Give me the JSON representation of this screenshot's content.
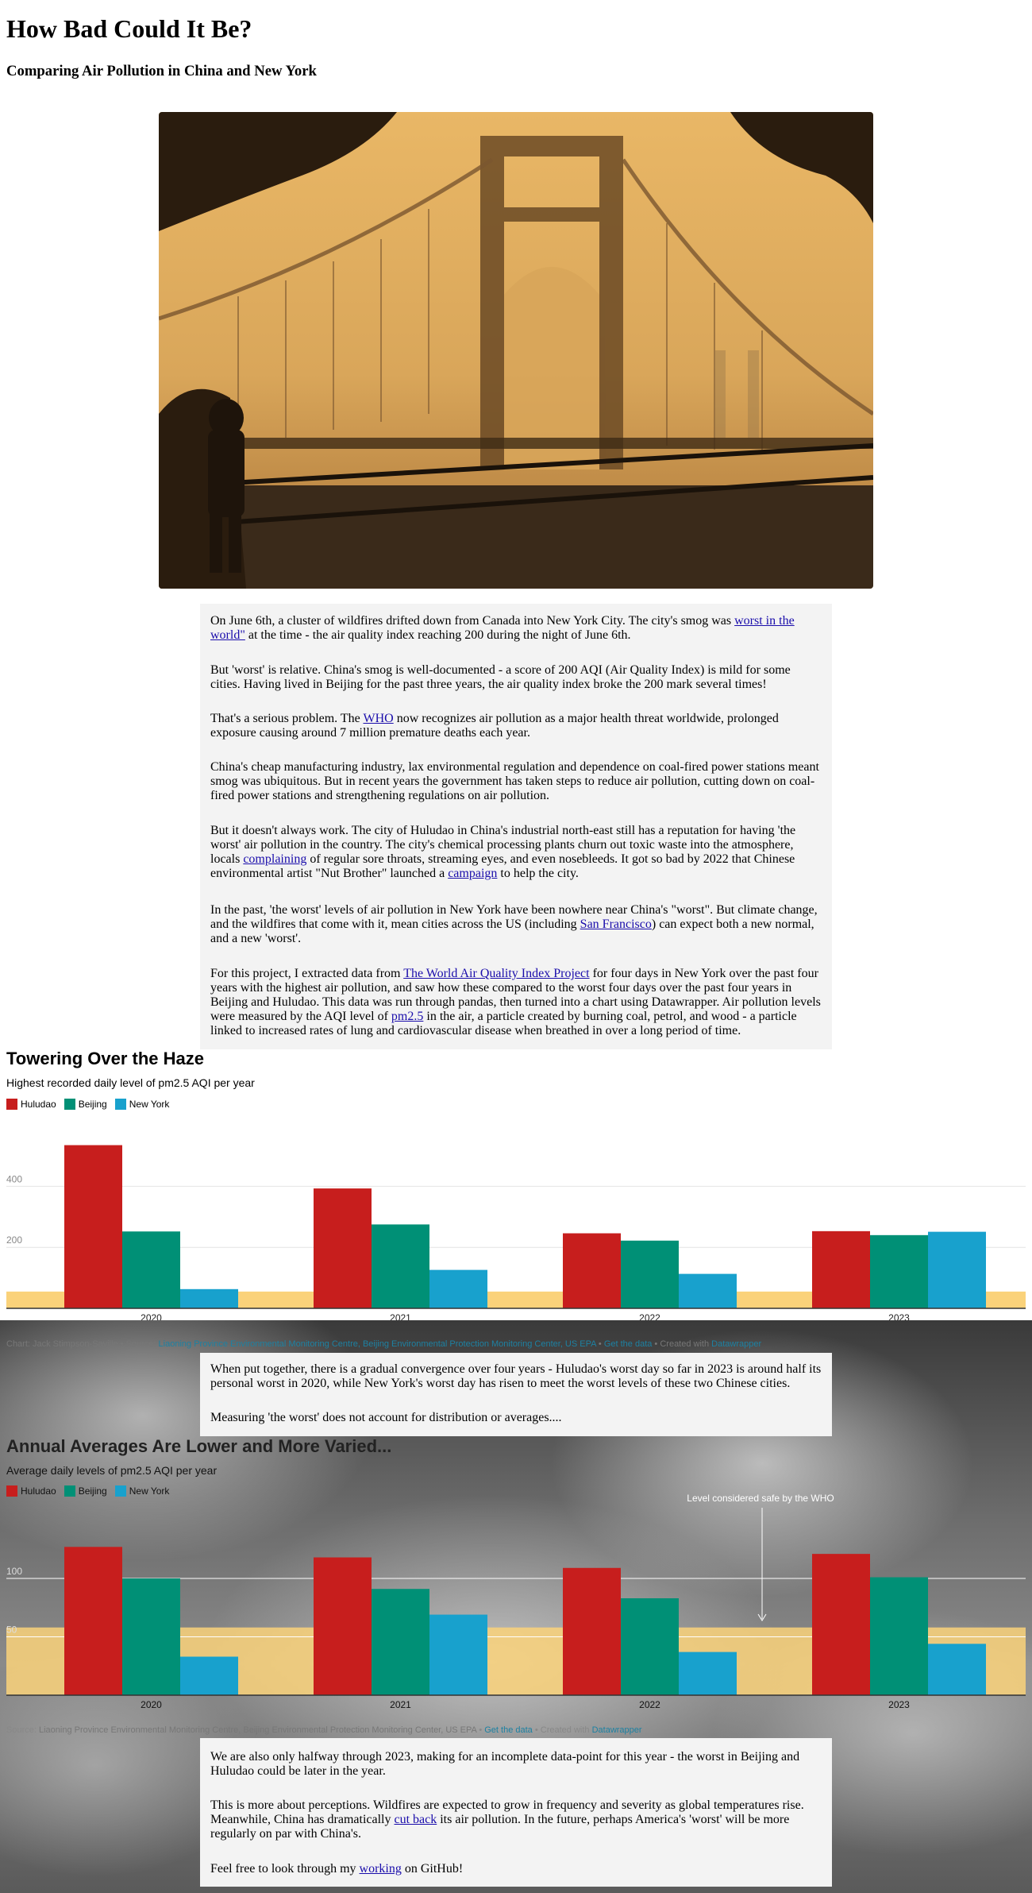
{
  "page": {
    "title": "How Bad Could It Be?",
    "subtitle": "Comparing Air Pollution in China and New York"
  },
  "article": {
    "p1": {
      "before": "On June 6th, a cluster of wildfires drifted down from Canada into New York City. The city's smog was ",
      "link": "worst in the world\"",
      "after": " at the time - the air quality index reaching 200 during the night of June 6th."
    },
    "p2": "But 'worst' is relative. China's smog is well-documented - a score of 200 AQI (Air Quality Index) is mild for some cities. Having lived in Beijing for the past three years, the air quality index broke the 200 mark several times!",
    "p3": {
      "before": "That's a serious problem. The ",
      "link": "WHO",
      "after": " now recognizes air pollution as a major health threat worldwide, prolonged exposure causing around 7 million premature deaths each year."
    },
    "p4": "China's cheap manufacturing industry, lax environmental regulation and dependence on coal-fired power stations meant smog was ubiquitous. But in recent years the government has taken steps to reduce air pollution, cutting down on coal-fired power stations and strengthening regulations on air pollution.",
    "p5": {
      "before": "But it doesn't always work. The city of Huludao in China's industrial north-east still has a reputation for having 'the worst' air pollution in the country. The city's chemical processing plants churn out toxic waste into the atmosphere, locals ",
      "link1": "complaining",
      "middle": " of regular sore throats, streaming eyes, and even nosebleeds. It got so bad by 2022 that Chinese environmental artist \"Nut Brother\" launched a ",
      "link2": "campaign",
      "after": " to help the city."
    },
    "p6": {
      "before": "In the past, 'the worst' levels of air pollution in New York have been nowhere near China's \"worst\". But climate change, and the wildfires that come with it, mean cities across the US (including ",
      "link": "San Francisco",
      "after": ") can expect both a new normal, and a new 'worst'."
    },
    "p7": {
      "before": "For this project, I extracted data from ",
      "link1": "The World Air Quality Index Project",
      "middle": " for four days in New York over the past four years with the highest air pollution, and saw how these compared to the worst four days over the past four years in Beijing and Huludao. This data was run through pandas, then turned into a chart using Datawrapper. Air pollution levels were measured by the AQI level of ",
      "link2": "pm2.5",
      "after": " in the air, a particle created by burning coal, petrol, and wood - a particle linked to increased rates of lung and cardiovascular disease when breathed in over a long period of time."
    },
    "p8": "When put together, there is a gradual convergence over four years - Huludao's worst day so far in 2023 is around half its personal worst in 2020, while New York's worst day has risen to meet the worst levels of these two Chinese cities.",
    "p9": "Measuring 'the worst' does not account for distribution or averages....",
    "p10": "We are also only halfway through 2023, making for an incomplete data-point for this year - the worst in Beijing and Huludao could be later in the year.",
    "p11": {
      "before": "This is more about perceptions. Wildfires are expected to grow in frequency and severity as global temperatures rise. Meanwhile, China has dramatically ",
      "link": "cut back",
      "after": " its air pollution. In the future, perhaps America's 'worst' will be more regularly on par with China's."
    },
    "p12": {
      "before": "Feel free to look through my ",
      "link": "working",
      "after": " on GitHub!"
    }
  },
  "chart1_meta": {
    "title": "Towering Over the Haze",
    "subtitle": "Highest recorded daily level of pm2.5 AQI per year",
    "source_prefix": "Chart: Jack Stimpson-Saville • Source: ",
    "source_link": "Liaoning Province Environmental Monitoring Centre, Beijing Environmental Protection Monitoring Center, US EPA",
    "get_data": "Get the data",
    "created_with": "Created with ",
    "datawrapper": "Datawrapper"
  },
  "chart2_meta": {
    "title": "Annual Averages Are Lower and More Varied...",
    "subtitle": "Average daily levels of pm2.5 AQI per year",
    "annotation": "Level considered safe by the WHO",
    "source_prefix": "Source: ",
    "source_link": "Liaoning Province Environmental Monitoring Centre, Beijing Environmental Protection Monitoring Center, US EPA",
    "get_data": "Get the data",
    "created_with": "Created with ",
    "datawrapper": "Datawrapper"
  },
  "colors": {
    "huludao": "#c71e1d",
    "beijing": "#009076",
    "new_york": "#18a1cd",
    "safe_band": "#fad27a"
  },
  "chart_data": [
    {
      "type": "bar",
      "title": "Towering Over the Haze",
      "subtitle": "Highest recorded daily level of pm2.5 AQI per year",
      "categories": [
        "2020",
        "2021",
        "2022",
        "2023"
      ],
      "series": [
        {
          "name": "Huludao",
          "values": [
            535,
            393,
            246,
            253
          ]
        },
        {
          "name": "Beijing",
          "values": [
            252,
            275,
            222,
            240
          ]
        },
        {
          "name": "New York",
          "values": [
            63,
            126,
            113,
            251
          ]
        }
      ],
      "yticks": [
        200,
        400
      ],
      "ylim": [
        0,
        560
      ],
      "highlight_band": [
        0,
        55
      ],
      "grid": true,
      "legend": "top-left"
    },
    {
      "type": "bar",
      "title": "Annual Averages Are Lower and More Varied...",
      "subtitle": "Average daily levels of pm2.5 AQI per year",
      "categories": [
        "2020",
        "2021",
        "2022",
        "2023"
      ],
      "series": [
        {
          "name": "Huludao",
          "values": [
            127,
            118,
            109,
            121
          ]
        },
        {
          "name": "Beijing",
          "values": [
            100,
            91,
            83,
            101
          ]
        },
        {
          "name": "New York",
          "values": [
            33,
            69,
            37,
            44
          ]
        }
      ],
      "yticks": [
        50,
        100
      ],
      "ylim": [
        0,
        135
      ],
      "highlight_band": [
        0,
        58
      ],
      "annotation": "Level considered safe by the WHO",
      "grid": true,
      "legend": "top-left"
    }
  ]
}
